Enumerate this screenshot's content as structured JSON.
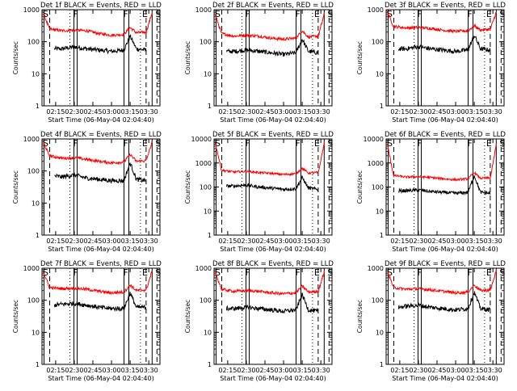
{
  "figure": {
    "panel_title_suffix": "BLACK = Events, RED = LLD",
    "xlabel": "Start Time (06-May-04 02:04:40)",
    "ylabel": "Counts/sec",
    "x_ticks": [
      "02:15",
      "02:30",
      "02:45",
      "03:00",
      "03:15",
      "03:30"
    ],
    "marker_labels": {
      "S": "S",
      "F": "F",
      "E": "E"
    }
  },
  "colors": {
    "events": "#000000",
    "lld": "#ff0000",
    "axes": "#000000",
    "background": "#ffffff"
  },
  "chart_data": [
    {
      "type": "line",
      "title": "Det 1f BLACK = Events, RED = LLD",
      "detector": "Det 1f",
      "xlabel": "Start Time (06-May-04 02:04:40)",
      "ylabel": "Counts/sec",
      "yscale": "log",
      "xlim": [
        "02:04",
        "03:39"
      ],
      "ylim": [
        1,
        1000
      ],
      "y_ticks": [
        1,
        10,
        100,
        1000
      ],
      "x_ticks": [
        "02:15",
        "02:30",
        "02:45",
        "03:00",
        "03:15",
        "03:30"
      ],
      "markers": [
        {
          "label": "S",
          "time": "02:05"
        },
        {
          "label": "F",
          "time": "02:31"
        },
        {
          "label": "F",
          "time": "03:12"
        },
        {
          "label": "E",
          "time": "03:22"
        },
        {
          "label": "S",
          "time": "03:34"
        }
      ],
      "series": [
        {
          "name": "Events",
          "color": "#000000",
          "x": [
            "02:14",
            "02:20",
            "02:30",
            "02:40",
            "02:50",
            "03:00",
            "03:10",
            "03:15",
            "03:20",
            "03:28"
          ],
          "values": [
            60,
            60,
            70,
            60,
            55,
            50,
            55,
            150,
            60,
            55
          ]
        },
        {
          "name": "LLD",
          "color": "#ff0000",
          "x": [
            "02:05",
            "02:10",
            "02:20",
            "02:30",
            "02:40",
            "02:50",
            "03:00",
            "03:10",
            "03:15",
            "03:20",
            "03:28",
            "03:33"
          ],
          "values": [
            800,
            250,
            220,
            230,
            220,
            180,
            160,
            170,
            280,
            190,
            200,
            900
          ]
        }
      ]
    },
    {
      "type": "line",
      "title": "Det 2f BLACK = Events, RED = LLD",
      "detector": "Det 2f",
      "xlabel": "Start Time (06-May-04 02:04:40)",
      "ylabel": "Counts/sec",
      "yscale": "log",
      "xlim": [
        "02:04",
        "03:39"
      ],
      "ylim": [
        1,
        1000
      ],
      "y_ticks": [
        1,
        10,
        100,
        1000
      ],
      "x_ticks": [
        "02:15",
        "02:30",
        "02:45",
        "03:00",
        "03:15",
        "03:30"
      ],
      "markers": [
        {
          "label": "S",
          "time": "02:05"
        },
        {
          "label": "F",
          "time": "02:31"
        },
        {
          "label": "F",
          "time": "03:12"
        },
        {
          "label": "E",
          "time": "03:22"
        },
        {
          "label": "S",
          "time": "03:34"
        }
      ],
      "series": [
        {
          "name": "Events",
          "color": "#000000",
          "x": [
            "02:14",
            "02:20",
            "02:30",
            "02:40",
            "02:50",
            "03:00",
            "03:10",
            "03:15",
            "03:20",
            "03:28"
          ],
          "values": [
            50,
            50,
            55,
            50,
            45,
            40,
            45,
            120,
            50,
            45
          ]
        },
        {
          "name": "LLD",
          "color": "#ff0000",
          "x": [
            "02:05",
            "02:10",
            "02:20",
            "02:30",
            "02:40",
            "02:50",
            "03:00",
            "03:10",
            "03:15",
            "03:20",
            "03:28",
            "03:33"
          ],
          "values": [
            700,
            180,
            150,
            160,
            150,
            130,
            120,
            130,
            220,
            140,
            150,
            800
          ]
        }
      ]
    },
    {
      "type": "line",
      "title": "Det 3f BLACK = Events, RED = LLD",
      "detector": "Det 3f",
      "xlabel": "Start Time (06-May-04 02:04:40)",
      "ylabel": "Counts/sec",
      "yscale": "log",
      "xlim": [
        "02:04",
        "03:39"
      ],
      "ylim": [
        1,
        1000
      ],
      "y_ticks": [
        1,
        10,
        100,
        1000
      ],
      "x_ticks": [
        "02:15",
        "02:30",
        "02:45",
        "03:00",
        "03:15",
        "03:30"
      ],
      "markers": [
        {
          "label": "S",
          "time": "02:05"
        },
        {
          "label": "F",
          "time": "02:31"
        },
        {
          "label": "F",
          "time": "03:12"
        },
        {
          "label": "E",
          "time": "03:22"
        },
        {
          "label": "S",
          "time": "03:34"
        }
      ],
      "series": [
        {
          "name": "Events",
          "color": "#000000",
          "x": [
            "02:14",
            "02:20",
            "02:30",
            "02:40",
            "02:50",
            "03:00",
            "03:10",
            "03:15",
            "03:20",
            "03:28"
          ],
          "values": [
            60,
            60,
            70,
            60,
            55,
            50,
            55,
            160,
            60,
            55
          ]
        },
        {
          "name": "LLD",
          "color": "#ff0000",
          "x": [
            "02:05",
            "02:10",
            "02:20",
            "02:30",
            "02:40",
            "02:50",
            "03:00",
            "03:10",
            "03:15",
            "03:20",
            "03:28",
            "03:33"
          ],
          "values": [
            850,
            300,
            270,
            280,
            260,
            230,
            210,
            220,
            320,
            230,
            250,
            900
          ]
        }
      ]
    },
    {
      "type": "line",
      "title": "Det 4f BLACK = Events, RED = LLD",
      "detector": "Det 4f",
      "xlabel": "Start Time (06-May-04 02:04:40)",
      "ylabel": "Counts/sec",
      "yscale": "log",
      "xlim": [
        "02:04",
        "03:39"
      ],
      "ylim": [
        1,
        1000
      ],
      "y_ticks": [
        1,
        10,
        100,
        1000
      ],
      "x_ticks": [
        "02:15",
        "02:30",
        "02:45",
        "03:00",
        "03:15",
        "03:30"
      ],
      "markers": [
        {
          "label": "S",
          "time": "02:05"
        },
        {
          "label": "F",
          "time": "02:31"
        },
        {
          "label": "F",
          "time": "03:12"
        },
        {
          "label": "E",
          "time": "03:22"
        },
        {
          "label": "S",
          "time": "03:34"
        }
      ],
      "series": [
        {
          "name": "Events",
          "color": "#000000",
          "x": [
            "02:14",
            "02:20",
            "02:30",
            "02:40",
            "02:50",
            "03:00",
            "03:10",
            "03:15",
            "03:20",
            "03:28"
          ],
          "values": [
            70,
            65,
            75,
            60,
            55,
            50,
            50,
            180,
            55,
            50
          ]
        },
        {
          "name": "LLD",
          "color": "#ff0000",
          "x": [
            "02:05",
            "02:10",
            "02:20",
            "02:30",
            "02:40",
            "02:50",
            "03:00",
            "03:10",
            "03:15",
            "03:20",
            "03:28",
            "03:33"
          ],
          "values": [
            800,
            300,
            250,
            260,
            230,
            200,
            180,
            190,
            330,
            200,
            210,
            900
          ]
        }
      ]
    },
    {
      "type": "line",
      "title": "Det 5f BLACK = Events, RED = LLD",
      "detector": "Det 5f",
      "xlabel": "Start Time (06-May-04 02:04:40)",
      "ylabel": "Counts/sec",
      "yscale": "log",
      "xlim": [
        "02:04",
        "03:39"
      ],
      "ylim": [
        1,
        10000
      ],
      "y_ticks": [
        1,
        10,
        100,
        1000,
        10000
      ],
      "x_ticks": [
        "02:15",
        "02:30",
        "02:45",
        "03:00",
        "03:15",
        "03:30"
      ],
      "markers": [
        {
          "label": "S",
          "time": "02:05"
        },
        {
          "label": "F",
          "time": "02:31"
        },
        {
          "label": "F",
          "time": "03:12"
        },
        {
          "label": "E",
          "time": "03:22"
        },
        {
          "label": "S",
          "time": "03:34"
        }
      ],
      "series": [
        {
          "name": "Events",
          "color": "#000000",
          "x": [
            "02:14",
            "02:20",
            "02:30",
            "02:40",
            "02:50",
            "03:00",
            "03:10",
            "03:15",
            "03:20",
            "03:28"
          ],
          "values": [
            110,
            110,
            120,
            100,
            90,
            80,
            85,
            250,
            90,
            80
          ]
        },
        {
          "name": "LLD",
          "color": "#ff0000",
          "x": [
            "02:05",
            "02:10",
            "02:20",
            "02:30",
            "02:40",
            "02:50",
            "03:00",
            "03:10",
            "03:15",
            "03:20",
            "03:28",
            "03:33"
          ],
          "values": [
            7000,
            500,
            420,
            450,
            400,
            370,
            330,
            360,
            600,
            380,
            400,
            8000
          ]
        }
      ]
    },
    {
      "type": "line",
      "title": "Det 6f BLACK = Events, RED = LLD",
      "detector": "Det 6f",
      "xlabel": "Start Time (06-May-04 02:04:40)",
      "ylabel": "Counts/sec",
      "yscale": "log",
      "xlim": [
        "02:04",
        "03:39"
      ],
      "ylim": [
        1,
        10000
      ],
      "y_ticks": [
        1,
        10,
        100,
        1000,
        10000
      ],
      "x_ticks": [
        "02:15",
        "02:30",
        "02:45",
        "03:00",
        "03:15",
        "03:30"
      ],
      "markers": [
        {
          "label": "S",
          "time": "02:05"
        },
        {
          "label": "F",
          "time": "02:31"
        },
        {
          "label": "F",
          "time": "03:12"
        },
        {
          "label": "E",
          "time": "03:22"
        },
        {
          "label": "S",
          "time": "03:34"
        }
      ],
      "series": [
        {
          "name": "Events",
          "color": "#000000",
          "x": [
            "02:14",
            "02:20",
            "02:30",
            "02:40",
            "02:50",
            "03:00",
            "03:10",
            "03:15",
            "03:20",
            "03:28"
          ],
          "values": [
            70,
            70,
            75,
            65,
            60,
            55,
            60,
            300,
            60,
            55
          ]
        },
        {
          "name": "LLD",
          "color": "#ff0000",
          "x": [
            "02:05",
            "02:10",
            "02:20",
            "02:30",
            "02:40",
            "02:50",
            "03:00",
            "03:10",
            "03:15",
            "03:20",
            "03:28",
            "03:33"
          ],
          "values": [
            6000,
            300,
            260,
            270,
            250,
            220,
            200,
            220,
            400,
            230,
            240,
            7000
          ]
        }
      ]
    },
    {
      "type": "line",
      "title": "Det 7f BLACK = Events, RED = LLD",
      "detector": "Det 7f",
      "xlabel": "Start Time (06-May-04 02:04:40)",
      "ylabel": "Counts/sec",
      "yscale": "log",
      "xlim": [
        "02:04",
        "03:39"
      ],
      "ylim": [
        1,
        1000
      ],
      "y_ticks": [
        1,
        10,
        100,
        1000
      ],
      "x_ticks": [
        "02:15",
        "02:30",
        "02:45",
        "03:00",
        "03:15",
        "03:30"
      ],
      "markers": [
        {
          "label": "S",
          "time": "02:05"
        },
        {
          "label": "F",
          "time": "02:31"
        },
        {
          "label": "F",
          "time": "03:12"
        },
        {
          "label": "E",
          "time": "03:22"
        },
        {
          "label": "S",
          "time": "03:34"
        }
      ],
      "series": [
        {
          "name": "Events",
          "color": "#000000",
          "x": [
            "02:14",
            "02:20",
            "02:30",
            "02:40",
            "02:50",
            "03:00",
            "03:10",
            "03:15",
            "03:20",
            "03:28"
          ],
          "values": [
            70,
            75,
            80,
            70,
            60,
            55,
            55,
            170,
            60,
            60
          ]
        },
        {
          "name": "LLD",
          "color": "#ff0000",
          "x": [
            "02:05",
            "02:10",
            "02:20",
            "02:30",
            "02:40",
            "02:50",
            "03:00",
            "03:10",
            "03:15",
            "03:20",
            "03:28",
            "03:33"
          ],
          "values": [
            800,
            250,
            230,
            240,
            220,
            190,
            170,
            180,
            300,
            200,
            210,
            900
          ]
        }
      ]
    },
    {
      "type": "line",
      "title": "Det 8f BLACK = Events, RED = LLD",
      "detector": "Det 8f",
      "xlabel": "Start Time (06-May-04 02:04:40)",
      "ylabel": "Counts/sec",
      "yscale": "log",
      "xlim": [
        "02:04",
        "03:39"
      ],
      "ylim": [
        1,
        1000
      ],
      "y_ticks": [
        1,
        10,
        100,
        1000
      ],
      "x_ticks": [
        "02:15",
        "02:30",
        "02:45",
        "03:00",
        "03:15",
        "03:30"
      ],
      "markers": [
        {
          "label": "S",
          "time": "02:05"
        },
        {
          "label": "F",
          "time": "02:31"
        },
        {
          "label": "F",
          "time": "03:12"
        },
        {
          "label": "E",
          "time": "03:22"
        },
        {
          "label": "S",
          "time": "03:34"
        }
      ],
      "series": [
        {
          "name": "Events",
          "color": "#000000",
          "x": [
            "02:14",
            "02:20",
            "02:30",
            "02:40",
            "02:50",
            "03:00",
            "03:10",
            "03:15",
            "03:20",
            "03:28"
          ],
          "values": [
            55,
            55,
            60,
            55,
            50,
            45,
            50,
            150,
            50,
            45
          ]
        },
        {
          "name": "LLD",
          "color": "#ff0000",
          "x": [
            "02:05",
            "02:10",
            "02:20",
            "02:30",
            "02:40",
            "02:50",
            "03:00",
            "03:10",
            "03:15",
            "03:20",
            "03:28",
            "03:33"
          ],
          "values": [
            750,
            220,
            190,
            200,
            190,
            170,
            160,
            170,
            280,
            180,
            190,
            850
          ]
        }
      ]
    },
    {
      "type": "line",
      "title": "Det 9f BLACK = Events, RED = LLD",
      "detector": "Det 9f",
      "xlabel": "Start Time (06-May-04 02:04:40)",
      "ylabel": "Counts/sec",
      "yscale": "log",
      "xlim": [
        "02:04",
        "03:39"
      ],
      "ylim": [
        1,
        1000
      ],
      "y_ticks": [
        1,
        10,
        100,
        1000
      ],
      "x_ticks": [
        "02:15",
        "02:30",
        "02:45",
        "03:00",
        "03:15",
        "03:30"
      ],
      "markers": [
        {
          "label": "S",
          "time": "02:05"
        },
        {
          "label": "F",
          "time": "02:31"
        },
        {
          "label": "F",
          "time": "03:12"
        },
        {
          "label": "E",
          "time": "03:22"
        },
        {
          "label": "S",
          "time": "03:34"
        }
      ],
      "series": [
        {
          "name": "Events",
          "color": "#000000",
          "x": [
            "02:14",
            "02:20",
            "02:30",
            "02:40",
            "02:50",
            "03:00",
            "03:10",
            "03:15",
            "03:20",
            "03:28"
          ],
          "values": [
            60,
            65,
            70,
            60,
            55,
            50,
            55,
            180,
            55,
            50
          ]
        },
        {
          "name": "LLD",
          "color": "#ff0000",
          "x": [
            "02:05",
            "02:10",
            "02:20",
            "02:30",
            "02:40",
            "02:50",
            "03:00",
            "03:10",
            "03:15",
            "03:20",
            "03:28",
            "03:33"
          ],
          "values": [
            800,
            250,
            220,
            230,
            210,
            190,
            170,
            180,
            300,
            200,
            210,
            900
          ]
        }
      ]
    }
  ]
}
